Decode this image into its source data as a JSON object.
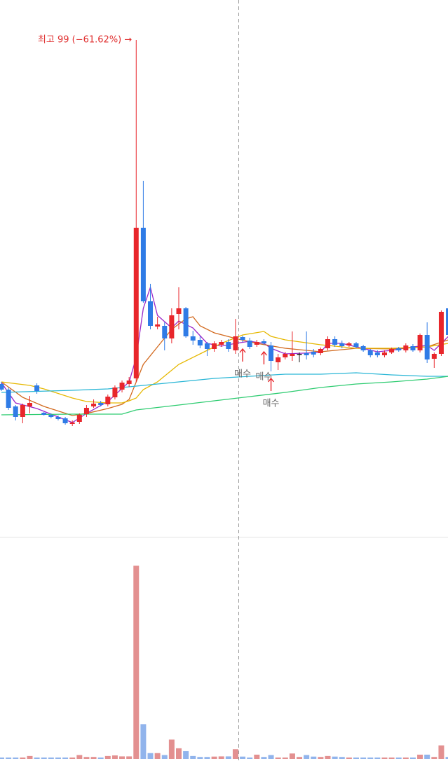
{
  "chart_data": {
    "type": "candlestick",
    "open": [
      49.9,
      49.1,
      46.7,
      45.2,
      46.7,
      49.7,
      45.8,
      45.5,
      45.2,
      45.0,
      44.2,
      44.5,
      45.6,
      46.7,
      47.2,
      47.0,
      48.0,
      49.1,
      49.9,
      50.7,
      72.2,
      61.7,
      58.1,
      58.2,
      56.4,
      59.9,
      60.7,
      56.7,
      56.2,
      55.7,
      54.9,
      55.5,
      55.9,
      54.7,
      56.6,
      56.1,
      55.5,
      56.0,
      55.4,
      53.0,
      53.7,
      53.9,
      54.2,
      54.3,
      54.5,
      54.3,
      55.0,
      56.3,
      55.7,
      55.4,
      55.7,
      55.3,
      54.7,
      54.4,
      54.0,
      54.4,
      55.0,
      54.7,
      55.3,
      54.7,
      56.9,
      53.5,
      54.2,
      60.7
    ],
    "high": [
      50.2,
      49.4,
      46.9,
      47.1,
      48.2,
      50.0,
      45.9,
      45.7,
      45.4,
      45.2,
      44.7,
      45.7,
      46.9,
      47.7,
      47.5,
      48.4,
      49.7,
      50.4,
      50.9,
      99.0,
      78.9,
      64.2,
      59.5,
      58.7,
      60.7,
      63.7,
      60.9,
      57.5,
      56.7,
      55.9,
      56.0,
      56.2,
      56.3,
      59.2,
      56.8,
      56.5,
      56.2,
      56.3,
      55.9,
      54.2,
      54.5,
      57.4,
      54.4,
      57.4,
      54.9,
      55.1,
      56.7,
      56.7,
      56.1,
      55.9,
      55.9,
      55.5,
      54.9,
      54.7,
      54.7,
      55.1,
      55.2,
      55.7,
      55.6,
      57.1,
      58.7,
      54.4,
      60.4,
      61.5
    ],
    "low": [
      48.9,
      46.2,
      44.7,
      44.3,
      45.7,
      48.5,
      45.4,
      45.0,
      44.7,
      44.1,
      43.9,
      44.2,
      45.2,
      46.5,
      46.7,
      46.7,
      47.7,
      48.7,
      49.5,
      50.2,
      61.5,
      57.7,
      57.7,
      54.7,
      55.7,
      57.7,
      56.5,
      55.5,
      55.0,
      53.9,
      54.5,
      55.2,
      54.5,
      54.2,
      55.9,
      54.9,
      55.2,
      55.5,
      51.7,
      51.9,
      53.4,
      53.2,
      53.0,
      53.4,
      53.7,
      54.0,
      54.7,
      55.2,
      55.0,
      55.2,
      55.0,
      54.5,
      53.7,
      53.7,
      53.7,
      54.2,
      54.5,
      54.4,
      54.5,
      54.4,
      52.9,
      52.2,
      53.9,
      56.7
    ],
    "close": [
      49.1,
      46.5,
      45.2,
      46.9,
      47.2,
      48.9,
      45.5,
      45.2,
      44.9,
      44.3,
      44.4,
      45.5,
      46.5,
      47.1,
      46.9,
      48.1,
      49.4,
      50.1,
      50.4,
      72.2,
      61.7,
      58.2,
      58.4,
      56.4,
      59.7,
      60.7,
      56.7,
      56.1,
      55.4,
      54.9,
      55.7,
      55.9,
      54.9,
      56.7,
      56.2,
      55.2,
      55.9,
      55.7,
      53.2,
      53.7,
      54.2,
      54.2,
      54.2,
      54.0,
      54.1,
      54.9,
      56.3,
      55.5,
      55.3,
      55.7,
      55.2,
      54.7,
      54.0,
      54.0,
      54.4,
      54.9,
      54.7,
      55.4,
      54.7,
      56.9,
      53.4,
      54.2,
      60.2,
      56.9
    ],
    "volume": [
      0.7,
      0.7,
      0.7,
      0.7,
      1.5,
      0.7,
      0.7,
      0.7,
      0.7,
      0.7,
      0.7,
      2,
      1,
      1,
      0.7,
      1.5,
      1.8,
      1.3,
      1.3,
      100,
      18,
      3,
      3,
      2,
      10,
      5.5,
      4,
      1.5,
      1,
      1,
      1.2,
      1.3,
      1.3,
      5,
      1.2,
      0.7,
      2.2,
      1,
      2,
      0.7,
      0.7,
      2.8,
      1,
      2,
      1.2,
      1,
      1.5,
      1.2,
      1,
      0.7,
      0.7,
      0.7,
      0.7,
      0.7,
      0.7,
      0.7,
      0.7,
      0.7,
      0.7,
      2.2,
      2.2,
      1,
      7,
      1
    ],
    "ylim": [
      28.2,
      104.7
    ],
    "volume_ylim": [
      0,
      115
    ],
    "up_color": "#e8262b",
    "down_color": "#2f7be6",
    "flat_color": "#222222",
    "volume_up_color": "#e39090",
    "volume_down_color": "#91b4ec",
    "lines": [
      {
        "color": "#9b27c9",
        "x": [
          0,
          2,
          5,
          10,
          12,
          15,
          18,
          19,
          20,
          21,
          22,
          24,
          25,
          27,
          29,
          31,
          33,
          35,
          37,
          38,
          40,
          45,
          46,
          48,
          50,
          53,
          55,
          58,
          60,
          61,
          63
        ],
        "values": [
          50.1,
          47.2,
          46.4,
          44.4,
          45.7,
          47.4,
          50.2,
          53.7,
          60.7,
          63.7,
          59.7,
          57.9,
          58.9,
          57.9,
          55.7,
          55.3,
          55.7,
          56.0,
          55.7,
          55.0,
          54.2,
          54.4,
          55.7,
          55.7,
          55.2,
          54.5,
          54.7,
          55.2,
          55.4,
          54.7,
          56.7
        ]
      },
      {
        "color": "#d2691e",
        "x": [
          0,
          3,
          6,
          10,
          12,
          15,
          17,
          18,
          19,
          20,
          22,
          24,
          26,
          27,
          28,
          30,
          33,
          36,
          40,
          45,
          50,
          55,
          60,
          63
        ],
        "values": [
          50.2,
          48.0,
          46.7,
          45.4,
          45.7,
          46.4,
          47.0,
          47.7,
          50.2,
          52.7,
          55.2,
          57.7,
          59.2,
          59.5,
          58.2,
          57.2,
          56.4,
          55.7,
          55.0,
          54.5,
          55.0,
          54.9,
          55.2,
          56.2
        ]
      },
      {
        "color": "#e6b800",
        "x": [
          0,
          4,
          6,
          10,
          12,
          15,
          17,
          18,
          19,
          20,
          22,
          25,
          28,
          31,
          34,
          37,
          38,
          40,
          45,
          50,
          55,
          60,
          63
        ],
        "values": [
          50.2,
          49.7,
          49.2,
          47.9,
          47.4,
          47.2,
          47.2,
          47.5,
          47.9,
          49.1,
          50.2,
          52.7,
          54.2,
          55.7,
          56.9,
          57.4,
          56.7,
          56.2,
          55.5,
          55.0,
          55.0,
          55.2,
          55.7
        ]
      },
      {
        "color": "#29b6d6",
        "x": [
          0,
          10,
          15,
          18,
          20,
          25,
          30,
          35,
          40,
          45,
          50,
          55,
          60,
          63
        ],
        "values": [
          48.7,
          49.0,
          49.2,
          49.5,
          49.7,
          50.2,
          50.7,
          51.0,
          51.3,
          51.3,
          51.5,
          51.2,
          51.0,
          51.0
        ]
      },
      {
        "color": "#2ecc71",
        "x": [
          0,
          10,
          17,
          19,
          25,
          30,
          35,
          40,
          45,
          50,
          55,
          60,
          63
        ],
        "values": [
          45.5,
          45.6,
          45.6,
          46.2,
          46.9,
          47.5,
          48.1,
          48.7,
          49.4,
          49.9,
          50.2,
          50.6,
          51.0
        ]
      }
    ],
    "peak_label": {
      "text": "최고 99 (−61.62%) →",
      "index": 19,
      "color": "#e03030"
    },
    "signals": [
      {
        "text": "매수",
        "index": 34
      },
      {
        "text": "매수",
        "index": 37
      },
      {
        "text": "매수",
        "index": 38
      }
    ],
    "signal_color": "#e8262b",
    "signal_text_color": "#666666"
  }
}
